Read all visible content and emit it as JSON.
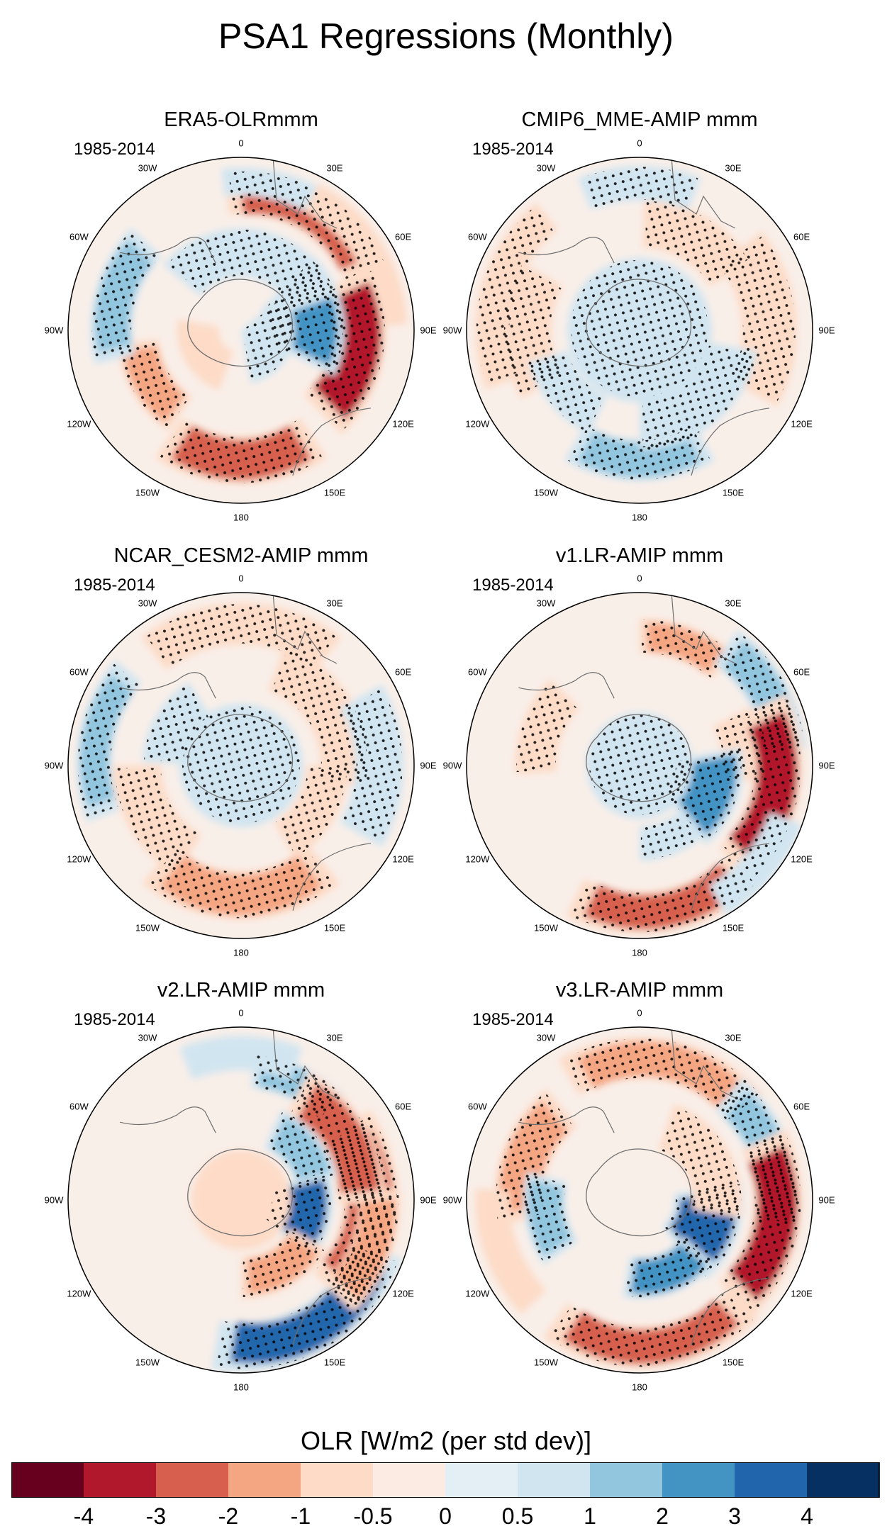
{
  "title": "PSA1 Regressions (Monthly)",
  "panels": [
    {
      "title": "ERA5-OLRmmm",
      "period": "1985-2014",
      "anomalies": [
        {
          "lon": 30,
          "r": 0.8,
          "a": 36,
          "b": 0.13,
          "v": -2.2,
          "stip": true
        },
        {
          "lon": 15,
          "r": 0.86,
          "a": 22,
          "b": 0.08,
          "v": 0.6,
          "stip": false
        },
        {
          "lon": 58,
          "r": 0.87,
          "a": 30,
          "b": 0.09,
          "v": -0.7,
          "stip": false
        },
        {
          "lon": 100,
          "r": 0.68,
          "a": 36,
          "b": 0.16,
          "v": -3.6,
          "stip": true
        },
        {
          "lon": 80,
          "r": 0.38,
          "a": 36,
          "b": 0.22,
          "v": 2.2,
          "stip": true
        },
        {
          "lon": 10,
          "r": 0.45,
          "a": 60,
          "b": 0.14,
          "v": 0.5,
          "stip": true
        },
        {
          "lon": 110,
          "r": 0.15,
          "a": 60,
          "b": 0.16,
          "v": 0.7,
          "stip": true
        },
        {
          "lon": 180,
          "r": 0.75,
          "a": 34,
          "b": 0.14,
          "v": -2.8,
          "stip": true
        },
        {
          "lon": -120,
          "r": 0.6,
          "a": 24,
          "b": 0.12,
          "v": -1.2,
          "stip": true
        },
        {
          "lon": -75,
          "r": 0.75,
          "a": 28,
          "b": 0.12,
          "v": 1.8,
          "stip": true
        },
        {
          "lon": -120,
          "r": 0.25,
          "a": 40,
          "b": 0.12,
          "v": -0.6,
          "stip": false
        }
      ]
    },
    {
      "title": "CMIP6_MME-AMIP  mmm",
      "period": "1985-2014",
      "anomalies": [
        {
          "lon": 0,
          "r": 0.2,
          "a": 180,
          "b": 0.22,
          "v": 0.6,
          "stip": true
        },
        {
          "lon": 85,
          "r": 0.75,
          "a": 34,
          "b": 0.16,
          "v": -0.9,
          "stip": true
        },
        {
          "lon": 30,
          "r": 0.62,
          "a": 28,
          "b": 0.14,
          "v": -0.6,
          "stip": true
        },
        {
          "lon": 0,
          "r": 0.85,
          "a": 22,
          "b": 0.1,
          "v": 0.6,
          "stip": true
        },
        {
          "lon": 180,
          "r": 0.75,
          "a": 30,
          "b": 0.12,
          "v": 1.8,
          "stip": true
        },
        {
          "lon": 140,
          "r": 0.55,
          "a": 40,
          "b": 0.14,
          "v": 0.7,
          "stip": true
        },
        {
          "lon": -90,
          "r": 0.65,
          "a": 30,
          "b": 0.14,
          "v": -0.9,
          "stip": true
        },
        {
          "lon": -75,
          "r": 0.85,
          "a": 36,
          "b": 0.1,
          "v": -0.8,
          "stip": true
        },
        {
          "lon": -130,
          "r": 0.55,
          "a": 24,
          "b": 0.12,
          "v": 0.5,
          "stip": true
        }
      ]
    },
    {
      "title": "NCAR_CESM2-AMIP  mmm",
      "period": "1985-2014",
      "anomalies": [
        {
          "lon": 0,
          "r": 0.82,
          "a": 38,
          "b": 0.12,
          "v": -0.8,
          "stip": true
        },
        {
          "lon": 60,
          "r": 0.6,
          "a": 40,
          "b": 0.14,
          "v": -0.7,
          "stip": true
        },
        {
          "lon": -80,
          "r": 0.85,
          "a": 30,
          "b": 0.1,
          "v": 1.2,
          "stip": true
        },
        {
          "lon": -120,
          "r": 0.6,
          "a": 30,
          "b": 0.14,
          "v": -0.8,
          "stip": true
        },
        {
          "lon": 90,
          "r": 0.8,
          "a": 30,
          "b": 0.14,
          "v": 0.6,
          "stip": true
        },
        {
          "lon": 0,
          "r": 0.12,
          "a": 180,
          "b": 0.24,
          "v": 0.8,
          "stip": true
        },
        {
          "lon": 180,
          "r": 0.75,
          "a": 40,
          "b": 0.14,
          "v": -1.8,
          "stip": true
        },
        {
          "lon": 120,
          "r": 0.5,
          "a": 30,
          "b": 0.12,
          "v": -0.6,
          "stip": true
        },
        {
          "lon": -60,
          "r": 0.45,
          "a": 28,
          "b": 0.12,
          "v": 0.6,
          "stip": true
        }
      ]
    },
    {
      "title": "v1.LR-AMIP  mmm",
      "period": "1985-2014",
      "anomalies": [
        {
          "lon": 20,
          "r": 0.75,
          "a": 20,
          "b": 0.1,
          "v": -1.4,
          "stip": true
        },
        {
          "lon": 60,
          "r": 0.85,
          "a": 24,
          "b": 0.12,
          "v": 1.5,
          "stip": true
        },
        {
          "lon": 80,
          "r": 0.6,
          "a": 18,
          "b": 0.12,
          "v": -0.7,
          "stip": true
        },
        {
          "lon": 100,
          "r": 0.8,
          "a": 36,
          "b": 0.14,
          "v": -3.6,
          "stip": true
        },
        {
          "lon": 110,
          "r": 0.4,
          "a": 30,
          "b": 0.2,
          "v": 2.6,
          "stip": true
        },
        {
          "lon": 170,
          "r": 0.85,
          "a": 36,
          "b": 0.12,
          "v": -2.8,
          "stip": true
        },
        {
          "lon": 160,
          "r": 0.45,
          "a": 20,
          "b": 0.1,
          "v": 0.6,
          "stip": true
        },
        {
          "lon": -70,
          "r": 0.6,
          "a": 24,
          "b": 0.12,
          "v": -1.0,
          "stip": true
        },
        {
          "lon": 0,
          "r": 0.15,
          "a": 180,
          "b": 0.16,
          "v": 0.7,
          "stip": true
        },
        {
          "lon": 130,
          "r": 0.9,
          "a": 20,
          "b": 0.1,
          "v": 0.6,
          "stip": false
        }
      ]
    },
    {
      "title": "v2.LR-AMIP  mmm",
      "period": "1985-2014",
      "anomalies": [
        {
          "lon": 25,
          "r": 0.75,
          "a": 20,
          "b": 0.1,
          "v": 1.8,
          "stip": true
        },
        {
          "lon": 150,
          "r": 0.85,
          "a": 40,
          "b": 0.14,
          "v": 3.0,
          "stip": true
        },
        {
          "lon": 100,
          "r": 0.35,
          "a": 30,
          "b": 0.18,
          "v": 3.0,
          "stip": true
        },
        {
          "lon": 95,
          "r": 0.75,
          "a": 40,
          "b": 0.16,
          "v": -2.2,
          "stip": true
        },
        {
          "lon": 60,
          "r": 0.7,
          "a": 32,
          "b": 0.14,
          "v": -2.4,
          "stip": true
        },
        {
          "lon": 150,
          "r": 0.45,
          "a": 30,
          "b": 0.12,
          "v": -2.0,
          "stip": true
        },
        {
          "lon": 110,
          "r": 0.8,
          "a": 24,
          "b": 0.12,
          "v": -1.6,
          "stip": true
        },
        {
          "lon": 50,
          "r": 0.45,
          "a": 26,
          "b": 0.12,
          "v": 1.6,
          "stip": true
        },
        {
          "lon": 0,
          "r": 0.15,
          "a": 180,
          "b": 0.14,
          "v": -0.6,
          "stip": false
        },
        {
          "lon": 0,
          "r": 0.85,
          "a": 22,
          "b": 0.1,
          "v": 0.6,
          "stip": false
        }
      ]
    },
    {
      "title": "v3.LR-AMIP  mmm",
      "period": "1985-2014",
      "anomalies": [
        {
          "lon": 10,
          "r": 0.82,
          "a": 40,
          "b": 0.12,
          "v": -1.8,
          "stip": true
        },
        {
          "lon": 70,
          "r": 0.8,
          "a": 30,
          "b": 0.12,
          "v": 1.2,
          "stip": true
        },
        {
          "lon": 100,
          "r": 0.8,
          "a": 36,
          "b": 0.14,
          "v": -3.4,
          "stip": true
        },
        {
          "lon": 110,
          "r": 0.4,
          "a": 30,
          "b": 0.2,
          "v": 3.0,
          "stip": true
        },
        {
          "lon": 160,
          "r": 0.45,
          "a": 30,
          "b": 0.12,
          "v": 2.2,
          "stip": true
        },
        {
          "lon": 175,
          "r": 0.85,
          "a": 40,
          "b": 0.12,
          "v": -2.6,
          "stip": true
        },
        {
          "lon": 60,
          "r": 0.45,
          "a": 40,
          "b": 0.14,
          "v": -1.0,
          "stip": true
        },
        {
          "lon": -70,
          "r": 0.7,
          "a": 30,
          "b": 0.14,
          "v": -1.4,
          "stip": true
        },
        {
          "lon": -100,
          "r": 0.55,
          "a": 24,
          "b": 0.12,
          "v": 1.8,
          "stip": true
        },
        {
          "lon": -110,
          "r": 0.85,
          "a": 24,
          "b": 0.1,
          "v": -0.6,
          "stip": false
        }
      ]
    }
  ],
  "lon_labels": [
    "0",
    "30E",
    "60E",
    "90E",
    "120E",
    "150E",
    "180",
    "150W",
    "120W",
    "90W",
    "60W",
    "30W"
  ],
  "colorbar": {
    "title": "OLR [W/m2 (per std dev)]",
    "colors": [
      "#67001f",
      "#b2182b",
      "#d6604d",
      "#f4a582",
      "#fddbc7",
      "#fbebe3",
      "#e3eef5",
      "#d1e5f0",
      "#92c5de",
      "#4393c3",
      "#2166ac",
      "#053061"
    ],
    "bounds": [
      -5,
      -4,
      -3,
      -2,
      -1,
      -0.5,
      0,
      0.5,
      1,
      2,
      3,
      4,
      5
    ],
    "tick_labels": [
      "-4",
      "-3",
      "-2",
      "-1",
      "-0.5",
      "0",
      "0.5",
      "1",
      "2",
      "3",
      "4"
    ]
  }
}
